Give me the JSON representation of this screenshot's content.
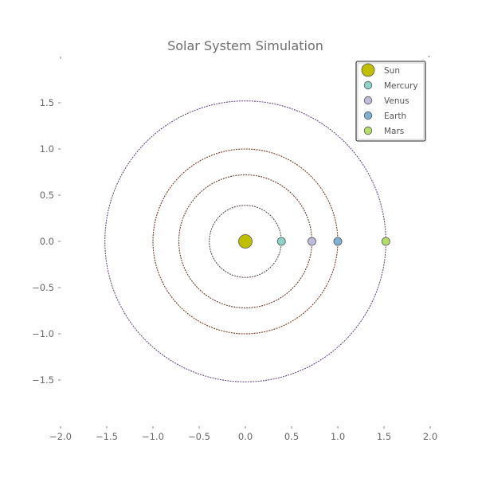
{
  "chart_data": {
    "type": "scatter",
    "title": "Solar System Simulation",
    "xlabel": "",
    "ylabel": "",
    "xlim": [
      -2.0,
      2.0
    ],
    "ylim": [
      -2.0,
      2.0
    ],
    "aspect": "equal",
    "grid": false,
    "legend_position": "top-right",
    "x_ticks": [
      -2.0,
      -1.5,
      -1.0,
      -0.5,
      0.0,
      0.5,
      1.0,
      1.5,
      2.0
    ],
    "x_tick_labels": [
      "−2.0",
      "−1.5",
      "−1.0",
      "−0.5",
      "0.0",
      "0.5",
      "1.0",
      "1.5",
      "2.0"
    ],
    "y_ticks": [
      1.5,
      1.0,
      0.5,
      0.0,
      -0.5,
      -1.0,
      -1.5
    ],
    "y_tick_labels": [
      "1.5",
      "1.0",
      "0.5",
      "0.0",
      "−0.5",
      "−1.0",
      "−1.5"
    ],
    "series": [
      {
        "name": "Sun",
        "x": 0.0,
        "y": 0.0,
        "color": "#bfbf00",
        "marker": "large-circle"
      },
      {
        "name": "Mercury",
        "x": 0.39,
        "y": 0.0,
        "color": "#8dd3c7",
        "marker": "circle",
        "orbit_radius": 0.39,
        "orbit_color": "#5a4a5a"
      },
      {
        "name": "Venus",
        "x": 0.72,
        "y": 0.0,
        "color": "#bebada",
        "marker": "circle",
        "orbit_radius": 0.72,
        "orbit_color": "#6b3d2e"
      },
      {
        "name": "Earth",
        "x": 1.0,
        "y": 0.0,
        "color": "#80b1d3",
        "marker": "circle",
        "orbit_radius": 1.0,
        "orbit_color": "#7a3b20"
      },
      {
        "name": "Mars",
        "x": 1.52,
        "y": 0.0,
        "color": "#b3de69",
        "marker": "circle",
        "orbit_radius": 1.52,
        "orbit_color": "#6a4a8a"
      }
    ]
  }
}
